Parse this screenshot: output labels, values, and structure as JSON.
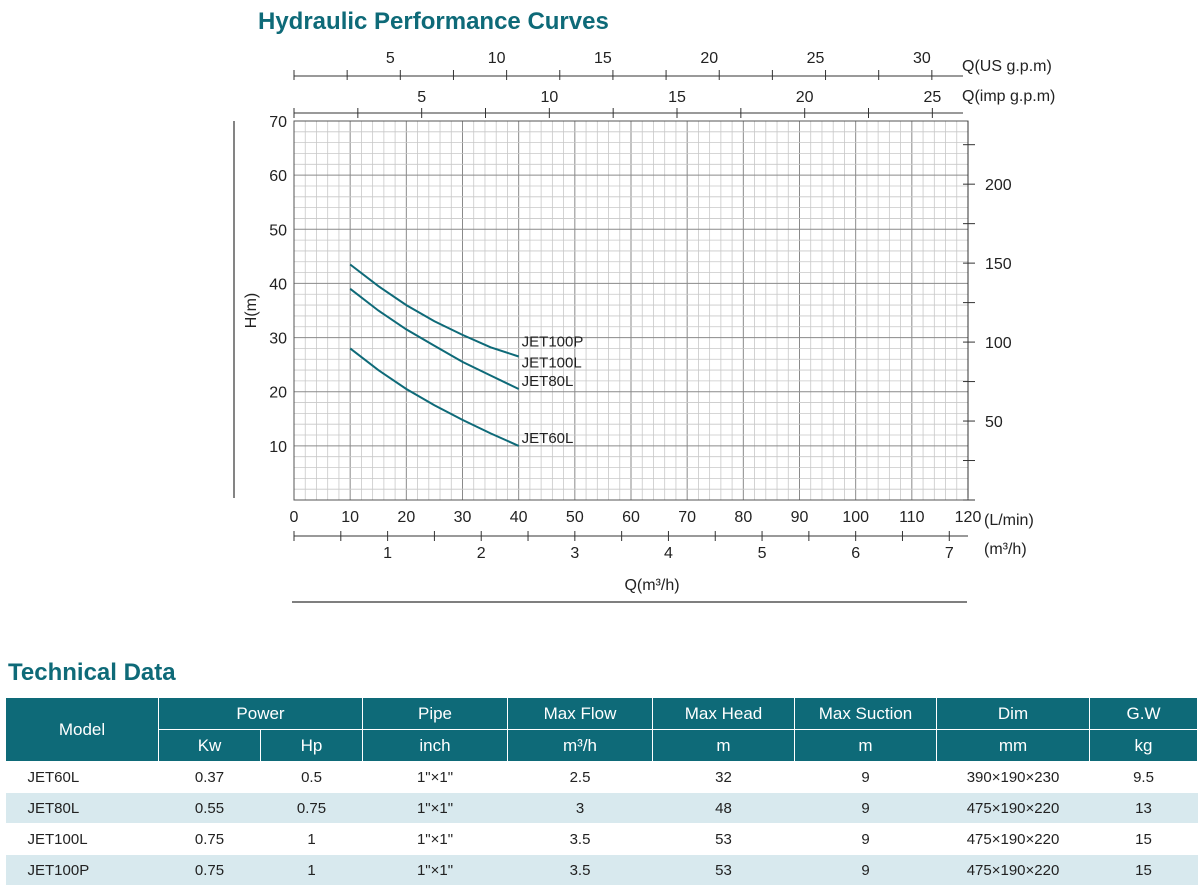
{
  "chart_title": "Hydraulic Performance Curves",
  "tech_title": "Technical Data",
  "chart_data": {
    "type": "line",
    "x_axis": {
      "label": "(L/min)",
      "range": [
        0,
        120
      ],
      "ticks": [
        0,
        10,
        20,
        30,
        40,
        50,
        60,
        70,
        80,
        90,
        100,
        110,
        120
      ]
    },
    "x_axis_m3h": {
      "label": "(m³/h)",
      "title": "Q(m³/h)",
      "ticks": [
        1,
        2,
        3,
        4,
        5,
        6,
        7
      ]
    },
    "x_axis_us_gpm": {
      "label": "Q(US g.p.m)",
      "ticks": [
        5,
        10,
        15,
        20,
        25,
        30
      ]
    },
    "x_axis_imp_gpm": {
      "label": "Q(imp g.p.m)",
      "ticks": [
        5,
        10,
        15,
        20,
        25
      ]
    },
    "y_axis": {
      "label": "H(m)",
      "range": [
        0,
        70
      ],
      "ticks": [
        10,
        20,
        30,
        40,
        50,
        60,
        70
      ]
    },
    "y_axis_right": {
      "ticks": [
        50,
        100,
        150,
        200
      ]
    },
    "grid": true,
    "series": [
      {
        "name": "JET100P",
        "label_lines": [
          "JET100P",
          "JET100L"
        ],
        "x": [
          10,
          15,
          20,
          25,
          30,
          35,
          40
        ],
        "y": [
          43.5,
          39.5,
          36,
          33,
          30.5,
          28.2,
          26.5
        ]
      },
      {
        "name": "JET80L",
        "label_lines": [
          "JET80L"
        ],
        "x": [
          10,
          15,
          20,
          25,
          30,
          35,
          40
        ],
        "y": [
          39,
          35,
          31.5,
          28.5,
          25.5,
          23,
          20.5
        ]
      },
      {
        "name": "JET60L",
        "label_lines": [
          "JET60L"
        ],
        "x": [
          10,
          15,
          20,
          25,
          30,
          35,
          40
        ],
        "y": [
          28,
          24,
          20.5,
          17.5,
          14.8,
          12.3,
          10
        ]
      }
    ],
    "line_color": "#0e6a78"
  },
  "table": {
    "header_row1": [
      "Model",
      "Power",
      "Pipe",
      "Max Flow",
      "Max Head",
      "Max Suction",
      "Dim",
      "G.W"
    ],
    "header_row2": [
      "Kw",
      "Hp",
      "inch",
      "m³/h",
      "m",
      "m",
      "mm",
      "kg"
    ],
    "rows": [
      [
        "JET60L",
        "0.37",
        "0.5",
        "1\"×1\"",
        "2.5",
        "32",
        "9",
        "390×190×230",
        "9.5"
      ],
      [
        "JET80L",
        "0.55",
        "0.75",
        "1\"×1\"",
        "3",
        "48",
        "9",
        "475×190×220",
        "13"
      ],
      [
        "JET100L",
        "0.75",
        "1",
        "1\"×1\"",
        "3.5",
        "53",
        "9",
        "475×190×220",
        "15"
      ],
      [
        "JET100P",
        "0.75",
        "1",
        "1\"×1\"",
        "3.5",
        "53",
        "9",
        "475×190×220",
        "15"
      ]
    ]
  }
}
